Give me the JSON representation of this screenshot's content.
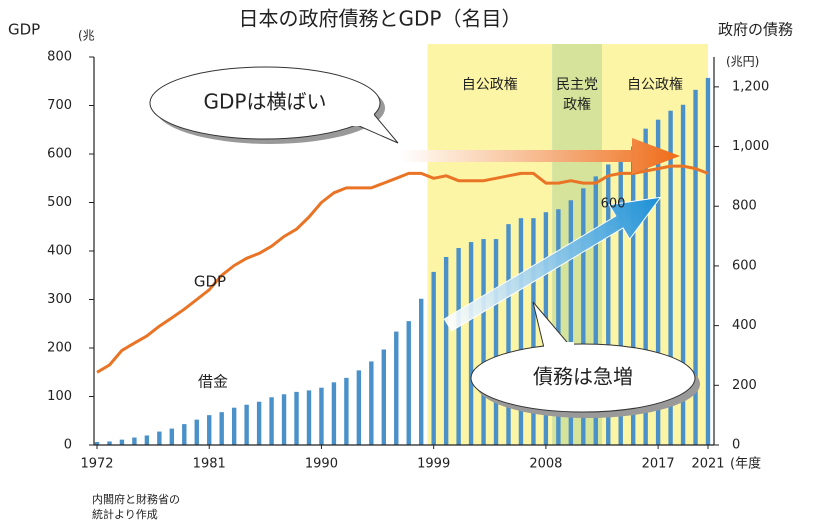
{
  "chart_data": {
    "type": "bar-line",
    "title": "日本の政府債務とGDP（名目）",
    "y_label": "GDP",
    "y_unit": "(兆",
    "y2_label": "政府の債務",
    "y2_unit": "(兆円)",
    "x_unit": "(年度",
    "source": [
      "内閣府と財務省の",
      "統計より作成"
    ],
    "callouts": [
      "GDPは横ばい",
      "債務は急増"
    ],
    "annotation": "600",
    "x": [
      1972,
      1973,
      1974,
      1975,
      1976,
      1977,
      1978,
      1979,
      1980,
      1981,
      1982,
      1983,
      1984,
      1985,
      1986,
      1987,
      1988,
      1989,
      1990,
      1991,
      1992,
      1993,
      1994,
      1995,
      1996,
      1997,
      1998,
      1999,
      2000,
      2001,
      2002,
      2003,
      2004,
      2005,
      2006,
      2007,
      2008,
      2009,
      2010,
      2011,
      2012,
      2013,
      2014,
      2015,
      2016,
      2017,
      2018,
      2019,
      2020,
      2021
    ],
    "xlim": [
      1972,
      2021
    ],
    "xticks": [
      1972,
      1981,
      1990,
      1999,
      2008,
      2017,
      2021
    ],
    "ylim": [
      0,
      800
    ],
    "yticks": [
      0,
      100,
      200,
      300,
      400,
      500,
      600,
      700,
      800
    ],
    "y2lim": [
      0,
      1300
    ],
    "y2ticks": [
      0,
      200,
      400,
      600,
      800,
      {
        "value": 1000,
        "label": "1,000"
      },
      {
        "value": 1200,
        "label": "1,200"
      }
    ],
    "regions": [
      {
        "label": [
          "自公政権"
        ],
        "start": 1999,
        "end": 2009,
        "color": "#fcf5a5"
      },
      {
        "label": [
          "民主党",
          "政権"
        ],
        "start": 2009,
        "end": 2013,
        "color": "#d5e39b"
      },
      {
        "label": [
          "自公政権"
        ],
        "start": 2013,
        "end": 2021.5,
        "color": "#fcf5a5"
      }
    ],
    "series": [
      {
        "name": "GDP",
        "color": "#ea7426",
        "axis": "y",
        "values": [
          150,
          165,
          195,
          210,
          225,
          245,
          262,
          280,
          300,
          320,
          350,
          370,
          385,
          395,
          410,
          430,
          445,
          470,
          500,
          520,
          530,
          530,
          530,
          540,
          550,
          560,
          560,
          550,
          555,
          545,
          545,
          545,
          550,
          555,
          560,
          560,
          540,
          540,
          545,
          540,
          540,
          555,
          560,
          560,
          565,
          570,
          575,
          575,
          570,
          560
        ]
      },
      {
        "name": "借金",
        "color": "#4b91c9",
        "axis": "y2",
        "values": [
          10,
          12,
          18,
          25,
          32,
          45,
          55,
          70,
          85,
          100,
          110,
          125,
          135,
          145,
          160,
          170,
          178,
          183,
          192,
          210,
          225,
          250,
          280,
          320,
          380,
          415,
          490,
          580,
          630,
          660,
          680,
          690,
          690,
          740,
          760,
          760,
          780,
          790,
          820,
          860,
          900,
          940,
          960,
          1000,
          1060,
          1090,
          1120,
          1140,
          1190,
          1230
        ]
      }
    ]
  }
}
